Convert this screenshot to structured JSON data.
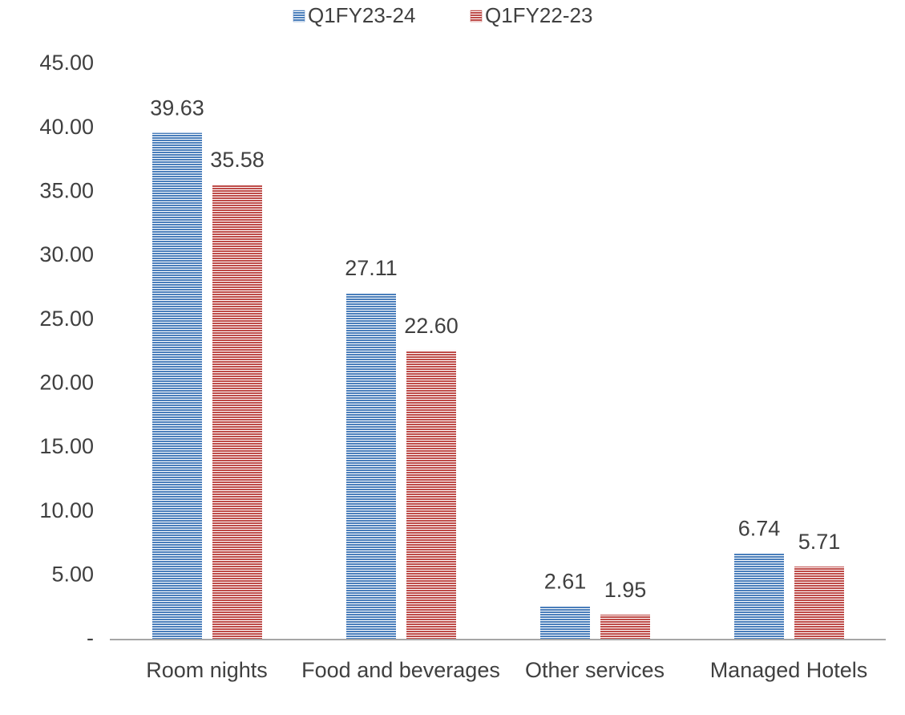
{
  "chart_data": {
    "type": "bar",
    "categories": [
      "Room nights",
      "Food and beverages",
      "Other services",
      "Managed Hotels"
    ],
    "series": [
      {
        "name": "Q1FY23-24",
        "color": "#4a7ebb",
        "values": [
          39.63,
          27.11,
          2.61,
          6.74
        ],
        "value_labels": [
          "39.63",
          "27.11",
          "2.61",
          "6.74"
        ]
      },
      {
        "name": "Q1FY22-23",
        "color": "#be4b48",
        "values": [
          35.58,
          22.6,
          1.95,
          5.71
        ],
        "value_labels": [
          "35.58",
          "22.60",
          "1.95",
          "5.71"
        ]
      }
    ],
    "ylim": [
      0,
      45
    ],
    "yticks": [
      {
        "value": 0,
        "label": "-"
      },
      {
        "value": 5,
        "label": "5.00"
      },
      {
        "value": 10,
        "label": "10.00"
      },
      {
        "value": 15,
        "label": "15.00"
      },
      {
        "value": 20,
        "label": "20.00"
      },
      {
        "value": 25,
        "label": "25.00"
      },
      {
        "value": 30,
        "label": "30.00"
      },
      {
        "value": 35,
        "label": "35.00"
      },
      {
        "value": 40,
        "label": "40.00"
      },
      {
        "value": 45,
        "label": "45.00"
      }
    ],
    "legend": "top",
    "grid": false
  }
}
